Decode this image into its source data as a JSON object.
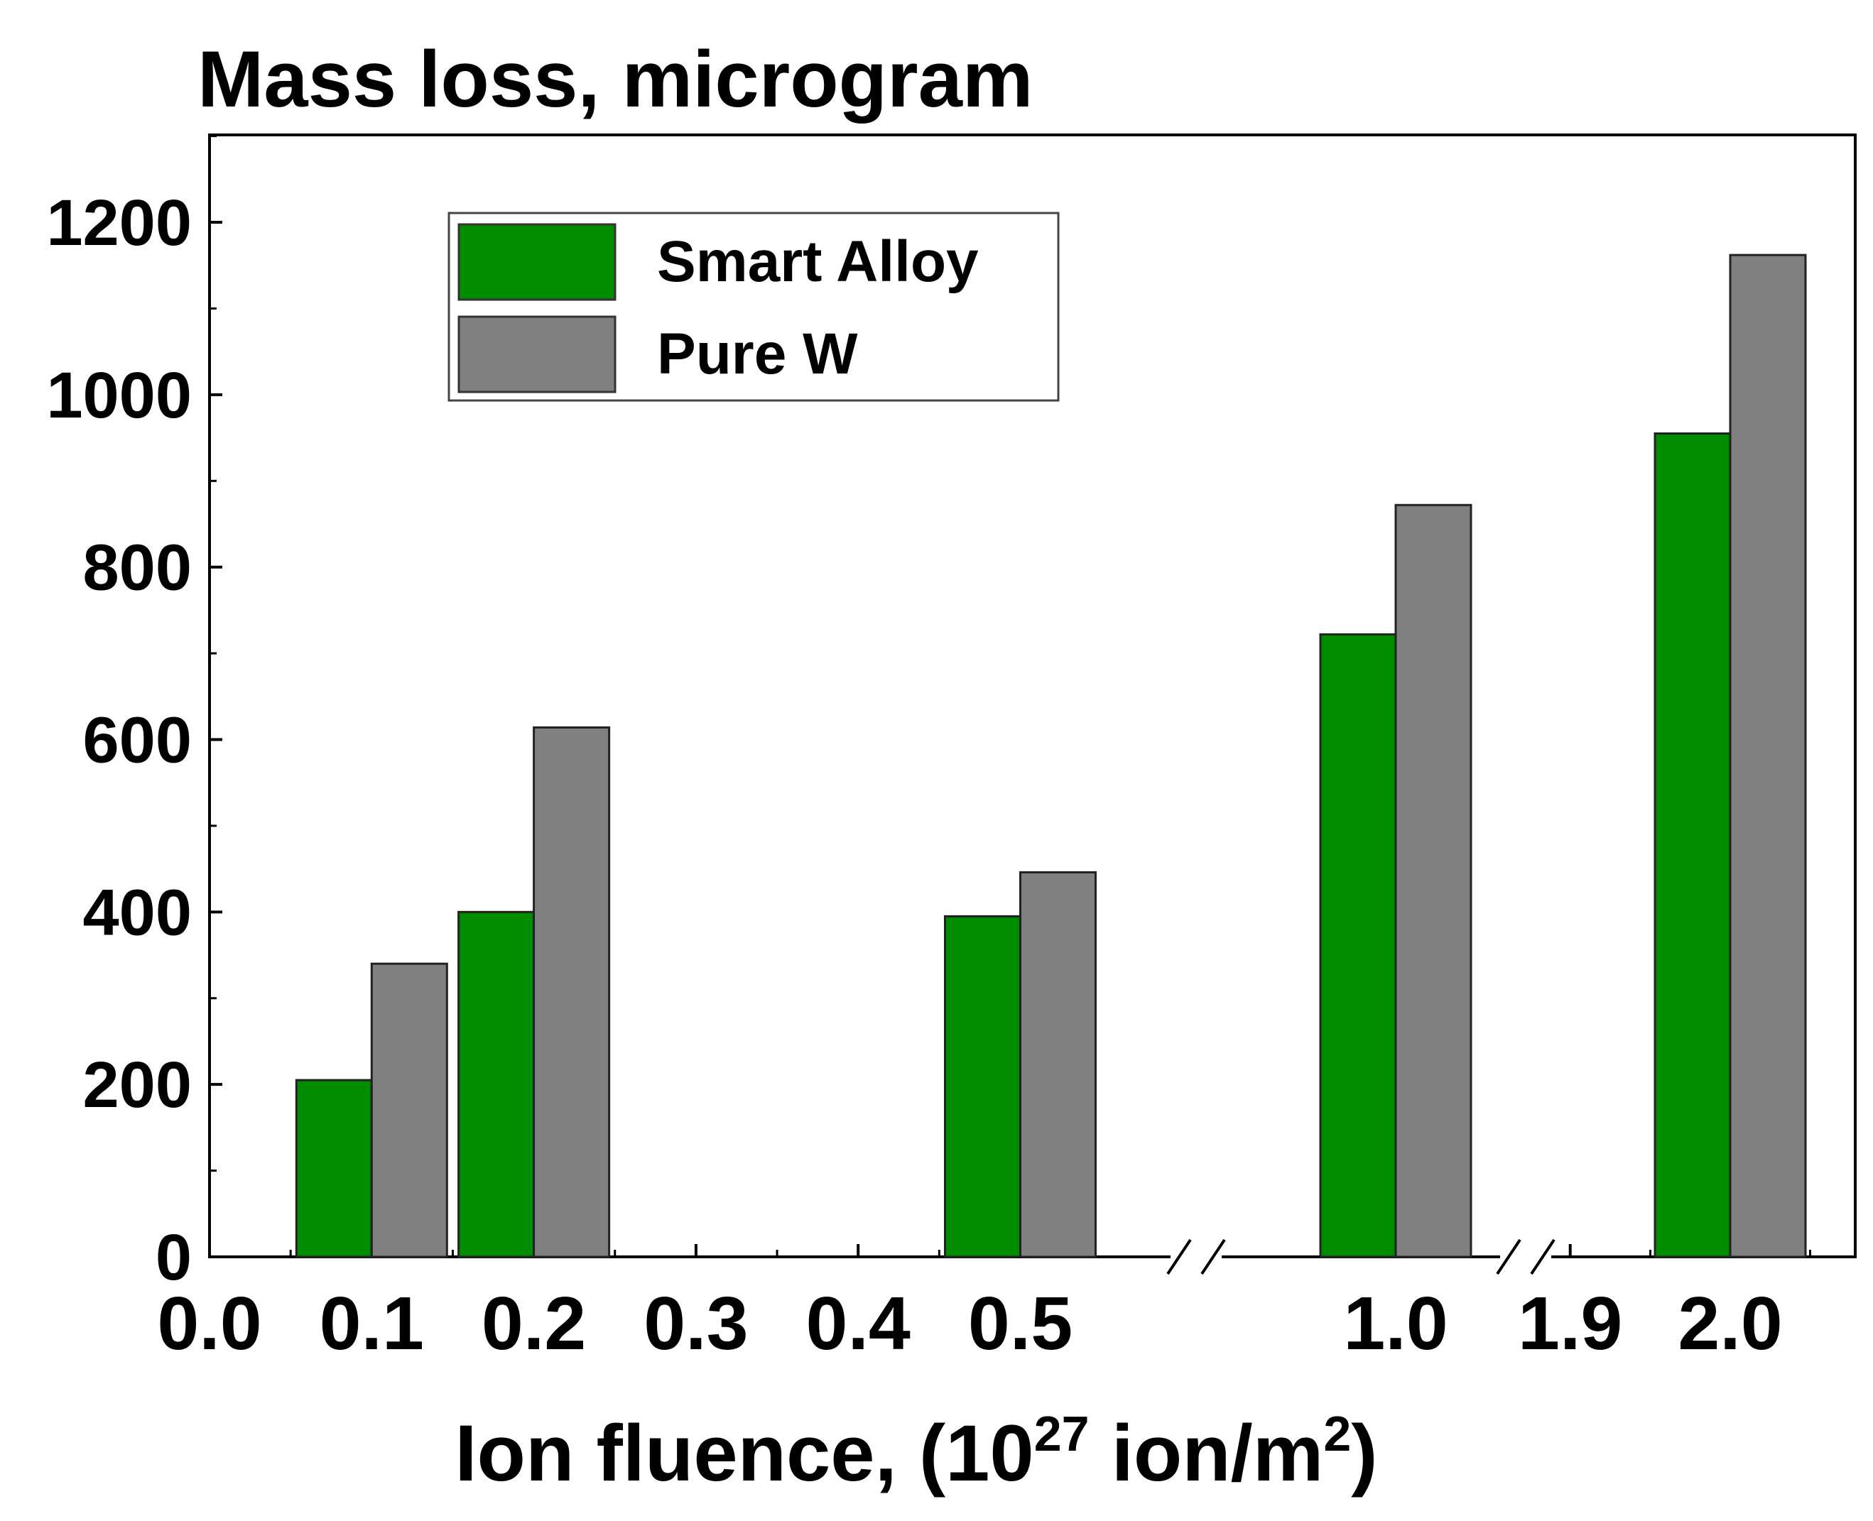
{
  "chart_data": {
    "type": "bar",
    "title": "Mass loss, microgram",
    "xlabel": {
      "prefix": "Ion fluence, (10",
      "exp1": "27",
      "middle": " ion/m",
      "exp2": "2",
      "suffix": ")"
    },
    "ylabel": "",
    "ylim": [
      0,
      1300
    ],
    "yticks": [
      "0",
      "200",
      "400",
      "600",
      "800",
      "1000",
      "1200"
    ],
    "ytick_values": [
      0,
      200,
      400,
      600,
      800,
      1000,
      1200
    ],
    "xticks": [
      {
        "label": "0.0",
        "x": 0.0
      },
      {
        "label": "0.1",
        "x": 0.1
      },
      {
        "label": "0.2",
        "x": 0.2
      },
      {
        "label": "0.3",
        "x": 0.3
      },
      {
        "label": "0.4",
        "x": 0.4
      },
      {
        "label": "0.5",
        "x": 0.5
      },
      {
        "label": "1.0",
        "x": 1.0
      },
      {
        "label": "1.9",
        "x": 1.9
      },
      {
        "label": "2.0",
        "x": 2.0
      }
    ],
    "axis_breaks": [
      "0.5-1.0",
      "1.0-1.9"
    ],
    "legend_position": "top-left",
    "categories": [
      "0.1",
      "0.2",
      "0.5",
      "1.0",
      "2.0"
    ],
    "series": [
      {
        "name": "Smart Alloy",
        "color": "#008c00",
        "values": [
          205,
          400,
          395,
          722,
          955
        ]
      },
      {
        "name": "Pure W",
        "color": "#808080",
        "values": [
          340,
          614,
          446,
          872,
          1162
        ]
      }
    ]
  }
}
